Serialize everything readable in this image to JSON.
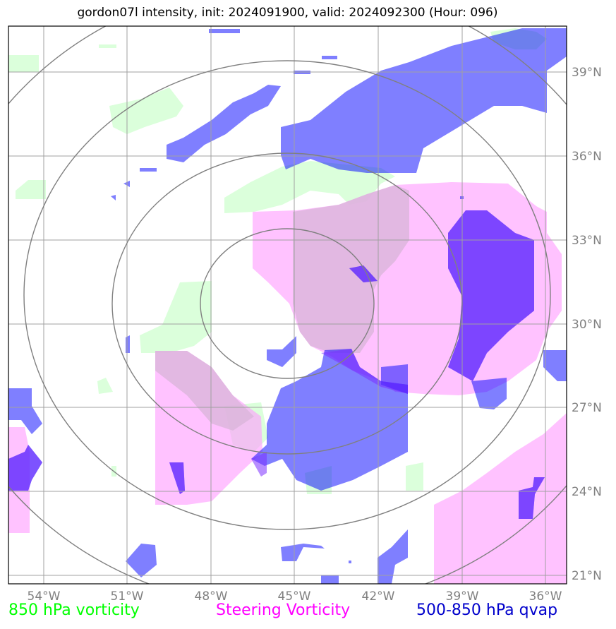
{
  "title": "gordon07l intensity, init: 2024091900, valid: 2024092300 (Hour: 096)",
  "axes": {
    "lon_labels": [
      "54°W",
      "51°W",
      "48°W",
      "45°W",
      "42°W",
      "39°W",
      "36°W"
    ],
    "lat_labels": [
      "39°N",
      "36°N",
      "33°N",
      "30°N",
      "27°N",
      "24°N",
      "21°N"
    ],
    "lon_range": [
      -55.3,
      -35.4
    ],
    "lat_range": [
      20.6,
      40.6
    ],
    "gridlines": true
  },
  "legend": [
    {
      "label": "850 hPa vorticity",
      "color": "#00ff00"
    },
    {
      "label": "Steering Vorticity",
      "color": "#ff00ff"
    },
    {
      "label": "500-850 hPa qvap",
      "color": "#0000cc"
    }
  ],
  "layers": {
    "vorticity_850": {
      "color": "#ccffcc",
      "opacity": 0.7
    },
    "steering_vorticity": {
      "color": "#ff99ff",
      "opacity": 0.6
    },
    "qvap_500_850": {
      "color": "#0000ff",
      "opacity": 0.5
    }
  },
  "range_rings": {
    "color": "#808080",
    "count": 4
  }
}
